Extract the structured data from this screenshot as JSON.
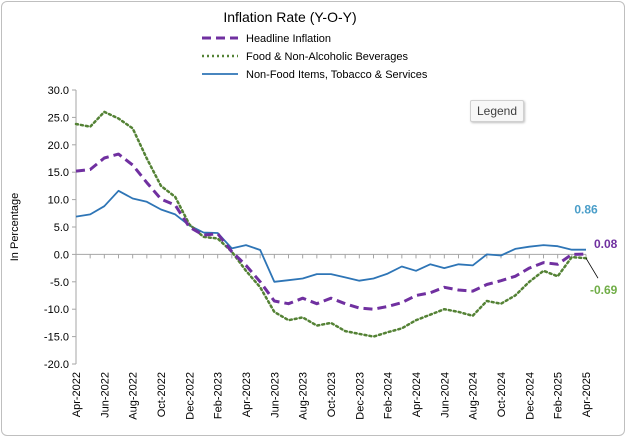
{
  "legend_button_label": "Legend",
  "chart_data": {
    "type": "line",
    "title": "Inflation Rate (Y-O-Y)",
    "xlabel": "",
    "ylabel": "In Percentage",
    "ylim": [
      -20,
      30
    ],
    "y_ticks": [
      "30.0",
      "25.0",
      "20.0",
      "15.0",
      "10.0",
      "5.0",
      "0.0",
      "-5.0",
      "-10.0",
      "-15.0",
      "-20.0"
    ],
    "legend_position": "top",
    "grid": false,
    "categories": [
      "Apr-2022",
      "May-2022",
      "Jun-2022",
      "Jul-2022",
      "Aug-2022",
      "Sep-2022",
      "Oct-2022",
      "Nov-2022",
      "Dec-2022",
      "Jan-2023",
      "Feb-2023",
      "Mar-2023",
      "Apr-2023",
      "May-2023",
      "Jun-2023",
      "Jul-2023",
      "Aug-2023",
      "Sep-2023",
      "Oct-2023",
      "Nov-2023",
      "Dec-2023",
      "Jan-2024",
      "Feb-2024",
      "Mar-2024",
      "Apr-2024",
      "May-2024",
      "Jun-2024",
      "Jul-2024",
      "Aug-2024",
      "Sep-2024",
      "Oct-2024",
      "Nov-2024",
      "Dec-2024",
      "Jan-2025",
      "Feb-2025",
      "Mar-2025",
      "Apr-2025"
    ],
    "x_tick_labels": [
      "Apr-2022",
      "Jun-2022",
      "Aug-2022",
      "Oct-2022",
      "Dec-2022",
      "Feb-2023",
      "Apr-2023",
      "Jun-2023",
      "Aug-2023",
      "Oct-2023",
      "Dec-2023",
      "Feb-2024",
      "Apr-2024",
      "Jun-2024",
      "Aug-2024",
      "Oct-2024",
      "Dec-2024",
      "Feb-2025",
      "Apr-2025"
    ],
    "series": [
      {
        "name": "Headline Inflation",
        "color": "#7030a0",
        "style": "dashed",
        "values": [
          15.2,
          15.5,
          17.6,
          18.3,
          16.3,
          13.1,
          10.1,
          9.0,
          5.0,
          3.5,
          3.8,
          0.5,
          -2.0,
          -5.0,
          -8.5,
          -9.0,
          -8.0,
          -9.0,
          -8.0,
          -9.0,
          -9.8,
          -10.0,
          -9.5,
          -8.8,
          -7.5,
          -7.0,
          -6.0,
          -6.5,
          -6.7,
          -5.5,
          -4.8,
          -4.0,
          -2.5,
          -1.5,
          -1.8,
          0.0,
          0.08
        ],
        "end_label": "0.08"
      },
      {
        "name": "Food & Non-Alcoholic Beverages",
        "color": "#548235",
        "style": "dotted",
        "values": [
          23.8,
          23.3,
          26.0,
          24.8,
          23.0,
          17.5,
          12.5,
          10.5,
          5.5,
          3.2,
          2.9,
          0.5,
          -3.0,
          -6.0,
          -10.5,
          -12.0,
          -11.5,
          -13.0,
          -12.5,
          -14.0,
          -14.5,
          -15.0,
          -14.2,
          -13.5,
          -12.0,
          -11.0,
          -10.0,
          -10.5,
          -11.2,
          -8.5,
          -9.0,
          -7.5,
          -5.0,
          -3.0,
          -4.0,
          -0.5,
          -0.69
        ],
        "end_label": "-0.69"
      },
      {
        "name": "Non-Food Items, Tobacco & Services",
        "color": "#2e75b6",
        "style": "solid",
        "values": [
          6.9,
          7.3,
          8.8,
          11.6,
          10.2,
          9.6,
          8.2,
          7.3,
          5.3,
          4.0,
          3.9,
          1.1,
          1.7,
          0.8,
          -5.0,
          -4.7,
          -4.4,
          -3.6,
          -3.6,
          -4.2,
          -4.8,
          -4.4,
          -3.5,
          -2.2,
          -3.0,
          -1.8,
          -2.5,
          -1.8,
          -2.0,
          0.0,
          -0.2,
          1.0,
          1.4,
          1.7,
          1.5,
          0.86,
          0.86
        ],
        "end_label": "0.86"
      }
    ]
  }
}
